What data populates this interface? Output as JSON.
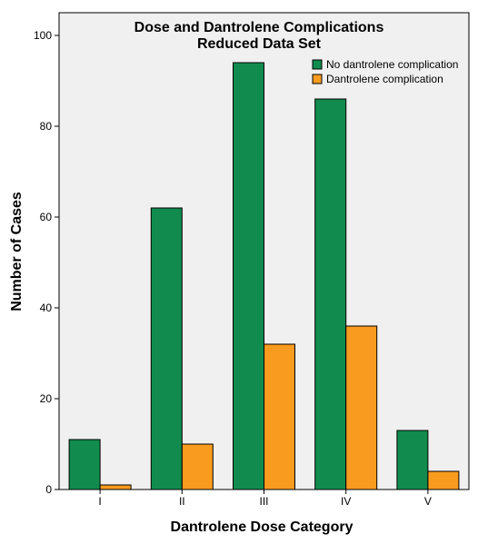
{
  "chart_data": {
    "type": "bar",
    "title": "Dose and Dantrolene Complications",
    "subtitle": "Reduced Data Set",
    "xlabel": "Dantrolene Dose Category",
    "ylabel": "Number of Cases",
    "categories": [
      "I",
      "II",
      "III",
      "IV",
      "V"
    ],
    "series": [
      {
        "name": "No dantrolene complication",
        "values": [
          11,
          62,
          94,
          86,
          13
        ],
        "color": "#118c4e"
      },
      {
        "name": "Dantrolene complication",
        "values": [
          1,
          10,
          32,
          36,
          4
        ],
        "color": "#f89b1f"
      }
    ],
    "ylim": [
      0,
      105
    ],
    "yticks": [
      0,
      20,
      40,
      60,
      80,
      100
    ],
    "grid": false,
    "legend": "top-right",
    "plot_background": "#f0f0f0"
  }
}
